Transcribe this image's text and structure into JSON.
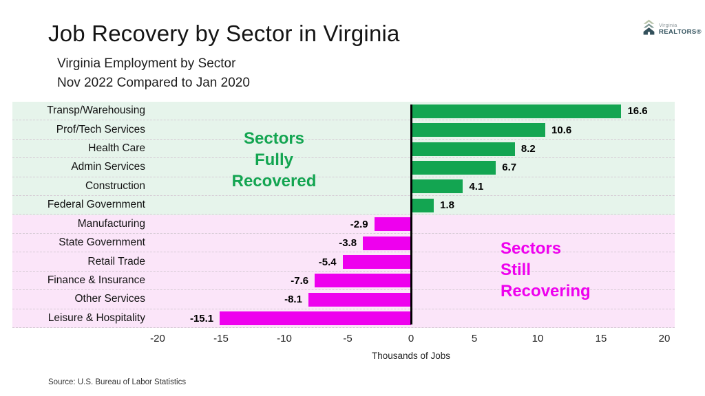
{
  "header": {
    "title": "Job Recovery by Sector in Virginia",
    "subtitle_line1": "Virginia Employment by Sector",
    "subtitle_line2": "Nov 2022 Compared to Jan 2020",
    "logo": {
      "brand_top": "Virginia",
      "brand_bottom": "REALTORS®"
    }
  },
  "chart_data": {
    "type": "bar",
    "orientation": "horizontal",
    "title": "Job Recovery by Sector in Virginia",
    "categories": [
      "Transp/Warehousing",
      "Prof/Tech Services",
      "Health Care",
      "Admin Services",
      "Construction",
      "Federal Government",
      "Manufacturing",
      "State Government",
      "Retail Trade",
      "Finance & Insurance",
      "Other Services",
      "Leisure & Hospitality"
    ],
    "values": [
      16.6,
      10.6,
      8.2,
      6.7,
      4.1,
      1.8,
      -2.9,
      -3.8,
      -5.4,
      -7.6,
      -8.1,
      -15.1
    ],
    "value_labels": [
      "16.6",
      "10.6",
      "8.2",
      "6.7",
      "4.1",
      "1.8",
      "-2.9",
      "-3.8",
      "-5.4",
      "-7.6",
      "-8.1",
      "-15.1"
    ],
    "xlabel": "Thousands of Jobs",
    "xlim": [
      -20,
      20
    ],
    "xtick_values": [
      -20,
      -15,
      -10,
      -5,
      0,
      5,
      10,
      15,
      20
    ],
    "xtick_labels": [
      "-20",
      "-15",
      "-10",
      "-5",
      "0",
      "5",
      "10",
      "15",
      "20"
    ],
    "grid": "horizontal-dashed",
    "colors": {
      "positive_bar": "#13a551",
      "negative_bar": "#ee00ee",
      "positive_band_bg": "#e6f4eb",
      "negative_band_bg": "#fbe5f9",
      "gridline": "#d5cad4",
      "zero_line": "#000000"
    },
    "annotations": [
      {
        "text": "Sectors\nFully\nRecovered",
        "color": "#13a551",
        "align": "center"
      },
      {
        "text": "Sectors\nStill\nRecovering",
        "color": "#ee00ee",
        "align": "left"
      }
    ]
  },
  "footer": {
    "source": "Source: U.S. Bureau of Labor Statistics"
  }
}
